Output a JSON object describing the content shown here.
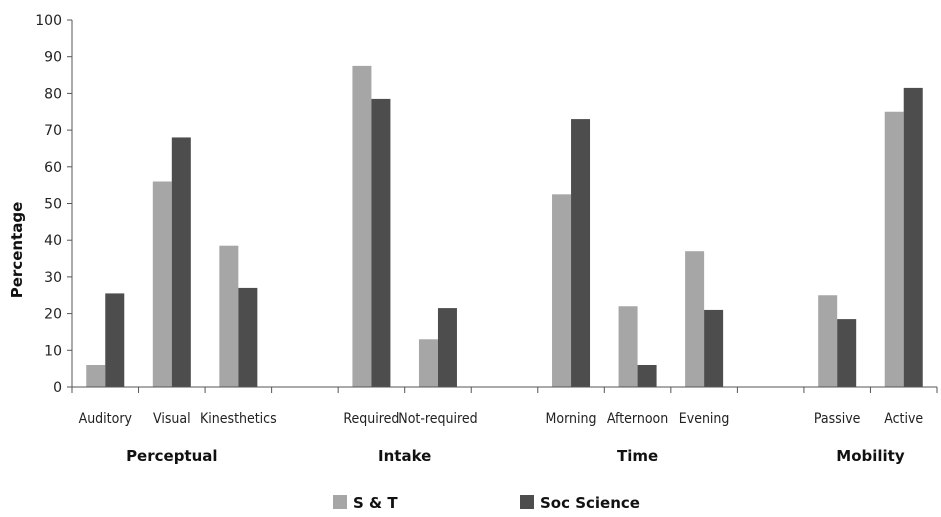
{
  "chart_data": {
    "type": "bar",
    "ylabel": "Percentage",
    "ylim": [
      0,
      100
    ],
    "yticks": [
      0,
      10,
      20,
      30,
      40,
      50,
      60,
      70,
      80,
      90,
      100
    ],
    "grid": false,
    "legend_position": "bottom",
    "categories": [
      "Auditory",
      "Visual",
      "Kinesthetics",
      "Required",
      "Not-required",
      "Morning",
      "Afternoon",
      "Evening",
      "Passive",
      "Active"
    ],
    "groups": [
      {
        "label": "Perceptual",
        "categories": [
          "Auditory",
          "Visual",
          "Kinesthetics"
        ]
      },
      {
        "label": "Intake",
        "categories": [
          "Required",
          "Not-required"
        ]
      },
      {
        "label": "Time",
        "categories": [
          "Morning",
          "Afternoon",
          "Evening"
        ]
      },
      {
        "label": "Mobility",
        "categories": [
          "Passive",
          "Active"
        ]
      }
    ],
    "series": [
      {
        "name": "S & T",
        "color": "#a6a6a6",
        "values": [
          6,
          56,
          38.5,
          87.5,
          13,
          52.5,
          22,
          37,
          25,
          75
        ]
      },
      {
        "name": "Soc Science",
        "color": "#4d4d4d",
        "values": [
          25.5,
          68,
          27,
          78.5,
          21.5,
          73,
          6,
          21,
          18.5,
          81.5
        ]
      }
    ]
  }
}
